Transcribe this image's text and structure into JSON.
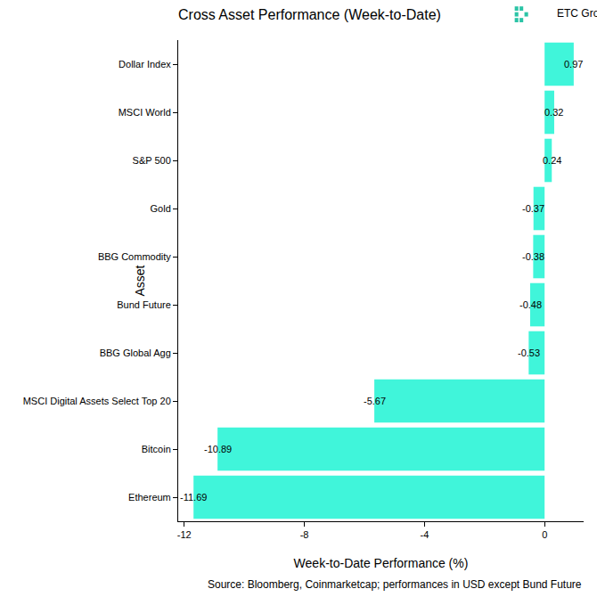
{
  "chart_data": {
    "type": "bar",
    "orientation": "horizontal",
    "title": "Cross Asset Performance (Week-to-Date)",
    "brand": "ETC Group",
    "caption": "Source: Bloomberg, Coinmarketcap; performances in USD except Bund Future",
    "x_label": "Week-to-Date Performance (%)",
    "y_label": "Asset",
    "categories": [
      "Dollar Index",
      "MSCI World",
      "S&P 500",
      "Gold",
      "BBG Commodity",
      "Bund Future",
      "BBG Global Agg",
      "MSCI Digital Assets Select Top 20",
      "Bitcoin",
      "Ethereum"
    ],
    "values": [
      0.97,
      0.32,
      0.24,
      -0.37,
      -0.38,
      -0.48,
      -0.53,
      -5.67,
      -10.89,
      -11.69
    ],
    "color": "#40F5DA",
    "xlim": [
      -12.2,
      1.3
    ],
    "xticks": [
      -12,
      -8,
      -4,
      0
    ],
    "grid": false,
    "data_labels": true
  }
}
